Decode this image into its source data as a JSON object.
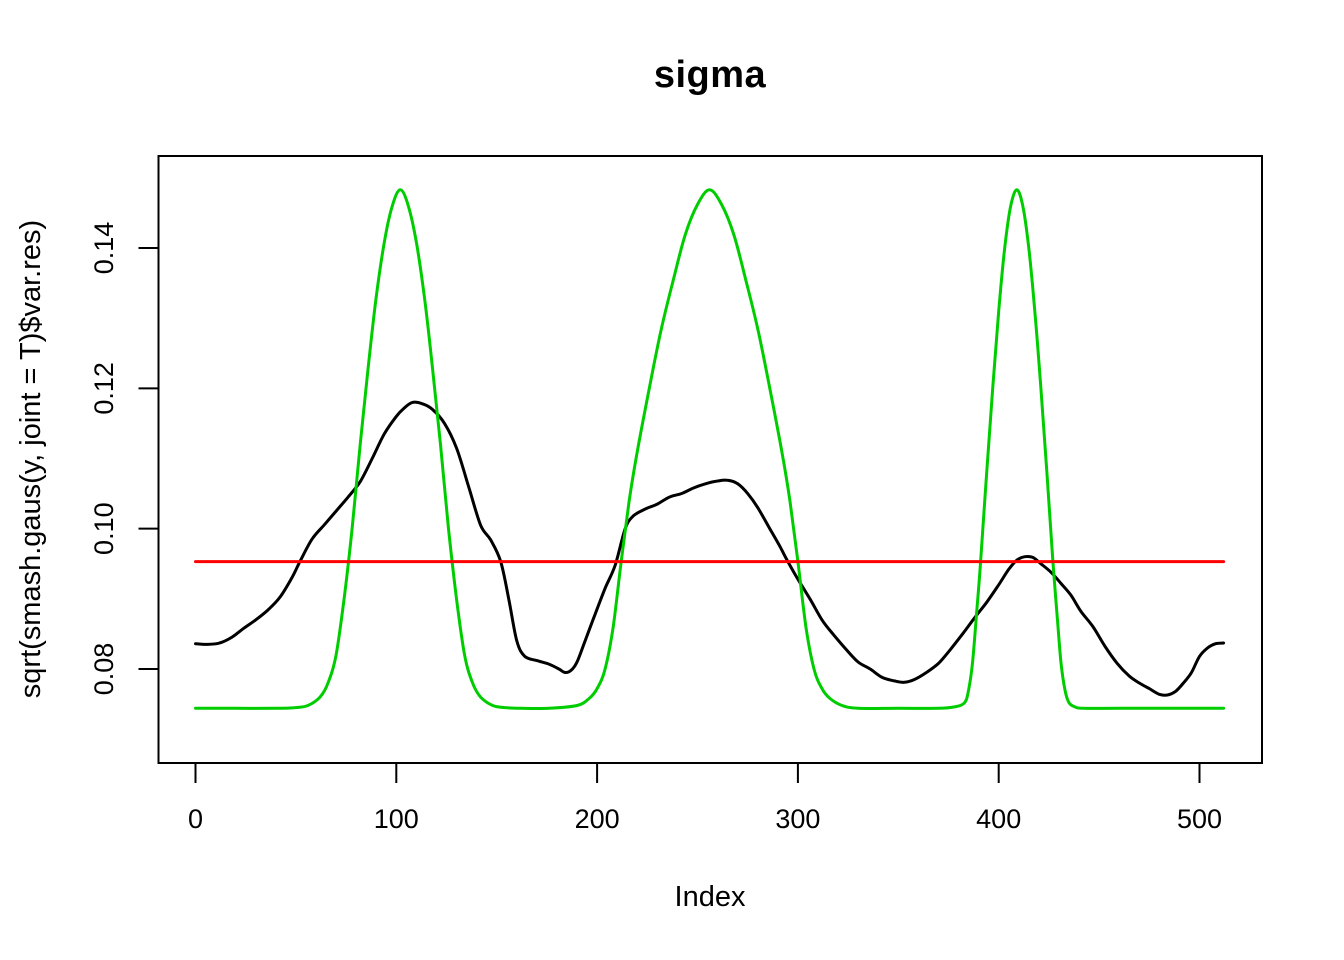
{
  "chart_data": {
    "type": "line",
    "title": "sigma",
    "xlabel": "Index",
    "ylabel": "sqrt(smash.gaus(y, joint = T)$var.res)",
    "xlim": [
      -19,
      532
    ],
    "ylim": [
      0.067,
      0.153
    ],
    "x_ticks": [
      0,
      100,
      200,
      300,
      400,
      500
    ],
    "y_ticks": [
      0.08,
      0.1,
      0.12,
      0.14
    ],
    "y_tick_labels": [
      "0.08",
      "0.10",
      "0.12",
      "0.14"
    ],
    "grid": false,
    "legend": "none",
    "series": [
      {
        "name": "estimated-sd-black",
        "color": "#000000",
        "points": [
          [
            0,
            0.0836
          ],
          [
            6,
            0.0835
          ],
          [
            12,
            0.0837
          ],
          [
            18,
            0.0845
          ],
          [
            24,
            0.0858
          ],
          [
            30,
            0.087
          ],
          [
            36,
            0.0884
          ],
          [
            42,
            0.0902
          ],
          [
            48,
            0.093
          ],
          [
            52,
            0.0953
          ],
          [
            58,
            0.0985
          ],
          [
            64,
            0.1005
          ],
          [
            70,
            0.1025
          ],
          [
            76,
            0.1045
          ],
          [
            82,
            0.1067
          ],
          [
            88,
            0.11
          ],
          [
            94,
            0.1135
          ],
          [
            100,
            0.116
          ],
          [
            104,
            0.1172
          ],
          [
            108,
            0.118
          ],
          [
            113,
            0.1178
          ],
          [
            118,
            0.117
          ],
          [
            124,
            0.115
          ],
          [
            130,
            0.1115
          ],
          [
            136,
            0.106
          ],
          [
            142,
            0.1005
          ],
          [
            147,
            0.0984
          ],
          [
            152,
            0.0953
          ],
          [
            156,
            0.09
          ],
          [
            160,
            0.084
          ],
          [
            164,
            0.0818
          ],
          [
            170,
            0.0812
          ],
          [
            176,
            0.0807
          ],
          [
            181,
            0.08
          ],
          [
            184,
            0.0795
          ],
          [
            187,
            0.0798
          ],
          [
            190,
            0.081
          ],
          [
            194,
            0.084
          ],
          [
            199,
            0.0878
          ],
          [
            204,
            0.0915
          ],
          [
            209,
            0.0948
          ],
          [
            214,
            0.1
          ],
          [
            218,
            0.1018
          ],
          [
            224,
            0.1028
          ],
          [
            230,
            0.1035
          ],
          [
            236,
            0.1045
          ],
          [
            242,
            0.105
          ],
          [
            248,
            0.1058
          ],
          [
            254,
            0.1064
          ],
          [
            260,
            0.1068
          ],
          [
            265,
            0.1069
          ],
          [
            270,
            0.1064
          ],
          [
            275,
            0.105
          ],
          [
            280,
            0.103
          ],
          [
            286,
            0.1
          ],
          [
            291,
            0.0975
          ],
          [
            295,
            0.0953
          ],
          [
            300,
            0.0928
          ],
          [
            306,
            0.09
          ],
          [
            312,
            0.087
          ],
          [
            318,
            0.0848
          ],
          [
            324,
            0.0828
          ],
          [
            330,
            0.081
          ],
          [
            336,
            0.08
          ],
          [
            342,
            0.0788
          ],
          [
            348,
            0.0783
          ],
          [
            353,
            0.0781
          ],
          [
            358,
            0.0785
          ],
          [
            364,
            0.0795
          ],
          [
            370,
            0.0808
          ],
          [
            376,
            0.0828
          ],
          [
            382,
            0.085
          ],
          [
            388,
            0.0873
          ],
          [
            394,
            0.0895
          ],
          [
            400,
            0.092
          ],
          [
            405,
            0.0942
          ],
          [
            409,
            0.0955
          ],
          [
            413,
            0.096
          ],
          [
            417,
            0.0959
          ],
          [
            421,
            0.095
          ],
          [
            426,
            0.0938
          ],
          [
            431,
            0.0922
          ],
          [
            436,
            0.0905
          ],
          [
            441,
            0.0882
          ],
          [
            447,
            0.086
          ],
          [
            453,
            0.0832
          ],
          [
            459,
            0.0808
          ],
          [
            465,
            0.079
          ],
          [
            470,
            0.078
          ],
          [
            475,
            0.0772
          ],
          [
            480,
            0.0764
          ],
          [
            484,
            0.0763
          ],
          [
            488,
            0.0768
          ],
          [
            492,
            0.078
          ],
          [
            496,
            0.0795
          ],
          [
            500,
            0.0818
          ],
          [
            504,
            0.083
          ],
          [
            508,
            0.0836
          ],
          [
            512,
            0.0837
          ]
        ]
      },
      {
        "name": "true-sigma-green",
        "color": "#00CD00",
        "points": [
          [
            0,
            0.0744
          ],
          [
            20,
            0.0744
          ],
          [
            40,
            0.0744
          ],
          [
            50,
            0.0745
          ],
          [
            56,
            0.0748
          ],
          [
            62,
            0.076
          ],
          [
            66,
            0.078
          ],
          [
            70,
            0.082
          ],
          [
            74,
            0.09
          ],
          [
            78,
            0.1
          ],
          [
            82,
            0.112
          ],
          [
            86,
            0.123
          ],
          [
            90,
            0.133
          ],
          [
            94,
            0.1408
          ],
          [
            98,
            0.146
          ],
          [
            102,
            0.1483
          ],
          [
            106,
            0.146
          ],
          [
            110,
            0.1408
          ],
          [
            114,
            0.133
          ],
          [
            118,
            0.123
          ],
          [
            122,
            0.112
          ],
          [
            126,
            0.1
          ],
          [
            130,
            0.09
          ],
          [
            134,
            0.082
          ],
          [
            138,
            0.078
          ],
          [
            142,
            0.076
          ],
          [
            148,
            0.0748
          ],
          [
            154,
            0.0745
          ],
          [
            162,
            0.0744
          ],
          [
            176,
            0.0744
          ],
          [
            190,
            0.0748
          ],
          [
            196,
            0.0758
          ],
          [
            200,
            0.0772
          ],
          [
            204,
            0.08
          ],
          [
            208,
            0.086
          ],
          [
            212,
            0.0953
          ],
          [
            216,
            0.104
          ],
          [
            220,
            0.111
          ],
          [
            226,
            0.12
          ],
          [
            232,
            0.1285
          ],
          [
            238,
            0.1355
          ],
          [
            244,
            0.142
          ],
          [
            250,
            0.1462
          ],
          [
            256,
            0.1483
          ],
          [
            262,
            0.1462
          ],
          [
            268,
            0.142
          ],
          [
            274,
            0.1355
          ],
          [
            280,
            0.1285
          ],
          [
            286,
            0.12
          ],
          [
            292,
            0.111
          ],
          [
            296,
            0.104
          ],
          [
            300,
            0.0953
          ],
          [
            304,
            0.086
          ],
          [
            308,
            0.08
          ],
          [
            312,
            0.0772
          ],
          [
            316,
            0.0758
          ],
          [
            322,
            0.0748
          ],
          [
            330,
            0.0744
          ],
          [
            350,
            0.0744
          ],
          [
            370,
            0.0744
          ],
          [
            378,
            0.0746
          ],
          [
            383,
            0.0752
          ],
          [
            385,
            0.077
          ],
          [
            387,
            0.081
          ],
          [
            389,
            0.088
          ],
          [
            391,
            0.0953
          ],
          [
            394,
            0.108
          ],
          [
            397,
            0.12
          ],
          [
            400,
            0.131
          ],
          [
            403,
            0.14
          ],
          [
            406,
            0.146
          ],
          [
            409,
            0.1483
          ],
          [
            412,
            0.146
          ],
          [
            415,
            0.14
          ],
          [
            418,
            0.131
          ],
          [
            421,
            0.12
          ],
          [
            424,
            0.108
          ],
          [
            427,
            0.0953
          ],
          [
            429,
            0.088
          ],
          [
            431,
            0.081
          ],
          [
            433,
            0.077
          ],
          [
            435,
            0.0752
          ],
          [
            438,
            0.0746
          ],
          [
            442,
            0.0744
          ],
          [
            460,
            0.0744
          ],
          [
            490,
            0.0744
          ],
          [
            512,
            0.0744
          ]
        ]
      },
      {
        "name": "mean-sd-red-line",
        "color": "#FF0000",
        "points": [
          [
            0,
            0.0953
          ],
          [
            512,
            0.0953
          ]
        ]
      }
    ]
  }
}
